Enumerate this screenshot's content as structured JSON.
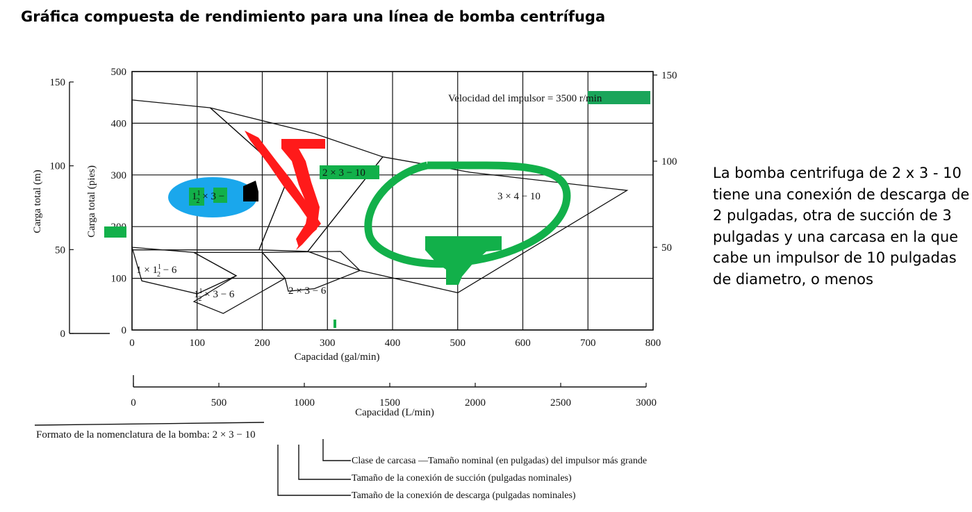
{
  "title": "Gráfica compuesta de rendimiento para una línea de bomba centrífuga",
  "side_note": "La bomba centrifuga de 2 x 3 - 10 tiene una conexión de descarga de 2 pulgadas, otra de succión de 3 pulgadas y una carcasa en la que cabe un impulsor de 10 pulgadas de diametro, o menos",
  "colors": {
    "line": "#111111",
    "highlight_green": "#1aa55a",
    "marker_red": "#ff1a1a",
    "marker_blue": "#1aa7ec",
    "marker_green": "#12b04a",
    "marker_black": "#000000"
  },
  "chart_data": {
    "type": "area",
    "speed_label": "Velocidad del impulsor = 3500 r/min",
    "x_axis": {
      "label": "Capacidad (gal/min)",
      "ticks": [
        "0",
        "100",
        "200",
        "300",
        "400",
        "500",
        "600",
        "700",
        "800"
      ],
      "range": [
        0,
        800
      ]
    },
    "x2_axis": {
      "label": "Capacidad (L/min)",
      "ticks": [
        "0",
        "500",
        "1000",
        "1500",
        "2000",
        "2500",
        "3000"
      ],
      "range": [
        0,
        3000
      ]
    },
    "y_axis": {
      "label": "Carga total (pies)",
      "ticks": [
        "0",
        "100",
        "200",
        "300",
        "400",
        "500"
      ],
      "range": [
        0,
        500
      ]
    },
    "y2_axis": {
      "label": "Carga total (m)",
      "ticks": [
        "0",
        "50",
        "100",
        "150"
      ],
      "range": [
        0,
        150
      ]
    },
    "y3_axis": {
      "ticks": [
        "50",
        "100",
        "150"
      ],
      "range": [
        0,
        150
      ]
    },
    "grid": true,
    "regions": [
      {
        "name": "1 × 1½ − 6",
        "label_parts": [
          "1 × 1",
          "1",
          "2",
          " − 6"
        ],
        "polygon": [
          [
            0,
            160
          ],
          [
            95,
            150
          ],
          [
            160,
            105
          ],
          [
            100,
            70
          ],
          [
            15,
            95
          ]
        ]
      },
      {
        "name": "1½ × 3 − 6",
        "label_parts": [
          "1",
          "1",
          "2",
          " × 3 − 6"
        ],
        "polygon": [
          [
            95,
            150
          ],
          [
            200,
            150
          ],
          [
            235,
            100
          ],
          [
            140,
            32
          ],
          [
            95,
            55
          ],
          [
            160,
            105
          ]
        ]
      },
      {
        "name": "2 × 3 − 6",
        "label_parts": [
          "2 × 3 − 6"
        ],
        "polygon": [
          [
            200,
            150
          ],
          [
            320,
            152
          ],
          [
            350,
            115
          ],
          [
            280,
            80
          ],
          [
            240,
            75
          ],
          [
            235,
            100
          ]
        ]
      },
      {
        "name": "1½ × 3 − 10",
        "label_parts": [
          "1",
          "1",
          "2",
          " × 3 − "
        ],
        "polygon": [
          [
            0,
            445
          ],
          [
            120,
            430
          ],
          [
            240,
            295
          ],
          [
            195,
            155
          ],
          [
            0,
            155
          ]
        ]
      },
      {
        "name": "2 × 3 − 10",
        "label_parts": [
          "2 × 3 − 10"
        ],
        "polygon": [
          [
            120,
            430
          ],
          [
            280,
            380
          ],
          [
            385,
            335
          ],
          [
            270,
            152
          ],
          [
            195,
            155
          ],
          [
            240,
            295
          ]
        ]
      },
      {
        "name": "3 × 4 − 10",
        "label_parts": [
          "3 × 4 − 10"
        ],
        "polygon": [
          [
            385,
            335
          ],
          [
            520,
            305
          ],
          [
            760,
            270
          ],
          [
            500,
            72
          ],
          [
            350,
            115
          ],
          [
            270,
            152
          ]
        ]
      }
    ]
  }
}
